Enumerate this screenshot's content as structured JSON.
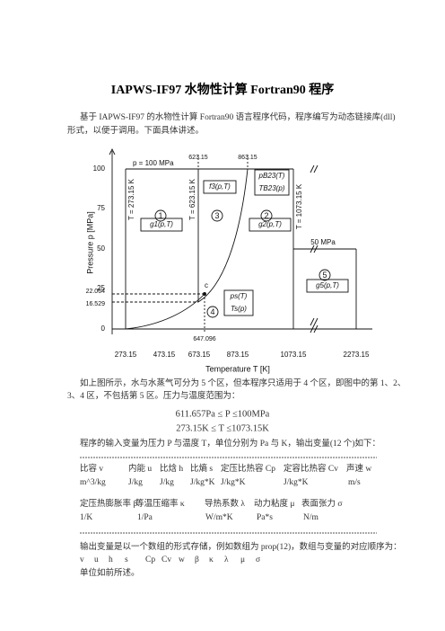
{
  "title": "IAPWS-IF97 水物性计算 Fortran90 程序",
  "intro": [
    "基于 IAPWS-IF97 的水物性计算 Fortran90 语言程序代码，程序编写为动态链接库(dll)",
    "形式，以便于调用。下面具体讲述。"
  ],
  "figure": {
    "y_axis_label": "Pressure p [MPa]",
    "x_axis_label": "Temperature T [K]",
    "y_ticks": [
      "100",
      "75",
      "50",
      "25",
      "22.064",
      "16.529",
      "0"
    ],
    "x_ticks": [
      "273.15",
      "473.15",
      "673.15",
      "873.15",
      "1073.15",
      "2273.15"
    ],
    "top_labels": [
      "623.15",
      "863.15"
    ],
    "p_max": "p = 100 MPa",
    "p_region5": "50 MPa",
    "isotherms": [
      "T = 273.15 K",
      "T = 623.15 K",
      "T = 1073.15 K"
    ],
    "regions": [
      "1",
      "3",
      "2",
      "4",
      "5"
    ],
    "functions": [
      "g1(p,T)",
      "f3(ρ,T)",
      "g2(p,T)",
      "g5(p,T)"
    ],
    "boundary_functions": [
      "pB23(T)",
      "TB23(p)"
    ],
    "saturation_functions": [
      "ps(T)",
      "Ts(p)"
    ],
    "critical_point": "c",
    "critical_temperature": "647.096"
  },
  "description": [
    "如上图所示，水与水蒸气可分为 5 个区，但本程序只适用于 4 个区，即图中的第 1、2、",
    "3、4 区，不包括第 5 区。压力与温度范围为："
  ],
  "ranges": [
    "611.657Pa ≤ P ≤100MPa",
    "273.15K ≤ T ≤1073.15K"
  ],
  "input_text": "程序的输入变量为压力 P 与温度 T，单位分别为 Pa 与 K，输出变量(12 个)如下：",
  "table": {
    "rows": [
      [
        "比容 v",
        "内能 u",
        "比焓 h",
        "比熵 s",
        "定压比热容 Cp",
        "定容比热容 Cv",
        "声速 w"
      ],
      [
        "m^3/kg",
        "J/kg",
        "J/kg",
        "J/kg*K",
        "J/kg*K",
        "J/kg*K",
        "m/s"
      ],
      [
        "定压热膨胀率 β",
        "等温压缩率 κ",
        "导热系数 λ",
        "动力粘度 μ",
        "表面张力 σ"
      ],
      [
        "1/K",
        "1/Pa",
        "W/m*K",
        "Pa*s",
        "N/m"
      ]
    ]
  },
  "output_text": "输出变量是以一个数组的形式存储，例如数组为 prop(12)，数组与变量的对应顺序为：",
  "sequence": [
    "v",
    "u",
    "h",
    "s",
    "Cp",
    "Cv",
    "w",
    "β",
    "κ",
    "λ",
    "μ",
    "σ"
  ],
  "closing": "单位如前所述。"
}
